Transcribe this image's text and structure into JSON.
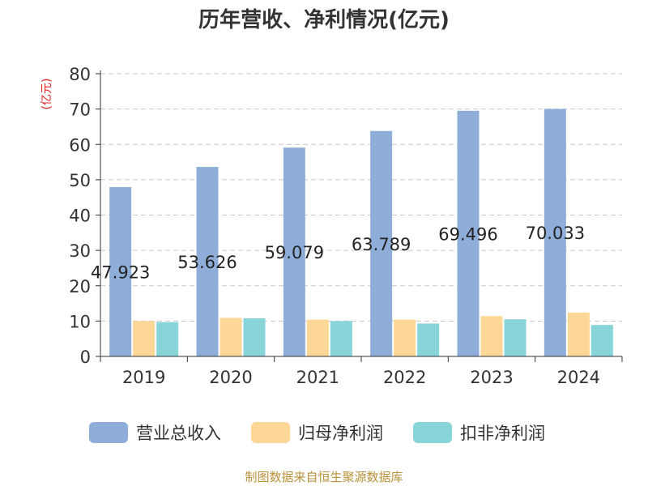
{
  "title": "历年营收、净利情况(亿元)",
  "footer": "制图数据来自恒生聚源数据库",
  "chart_data": {
    "type": "bar",
    "ylabel": "(亿元)",
    "ylim": [
      0,
      80
    ],
    "yticks": [
      0,
      10,
      20,
      30,
      40,
      50,
      60,
      70,
      80
    ],
    "grid": true,
    "legend_position": "bottom",
    "categories": [
      "2019",
      "2020",
      "2021",
      "2022",
      "2023",
      "2024"
    ],
    "series": [
      {
        "name": "营业总收入",
        "color": "#8eadd8",
        "values": [
          47.923,
          53.626,
          59.079,
          63.789,
          69.496,
          70.033
        ],
        "show_labels": true
      },
      {
        "name": "归母净利润",
        "color": "#fdd795",
        "values": [
          10.0,
          10.9,
          10.4,
          10.4,
          11.4,
          12.4
        ],
        "show_labels": false
      },
      {
        "name": "扣非净利润",
        "color": "#87d4d9",
        "values": [
          9.7,
          10.8,
          10.0,
          9.3,
          10.5,
          8.9
        ],
        "show_labels": false
      }
    ]
  }
}
